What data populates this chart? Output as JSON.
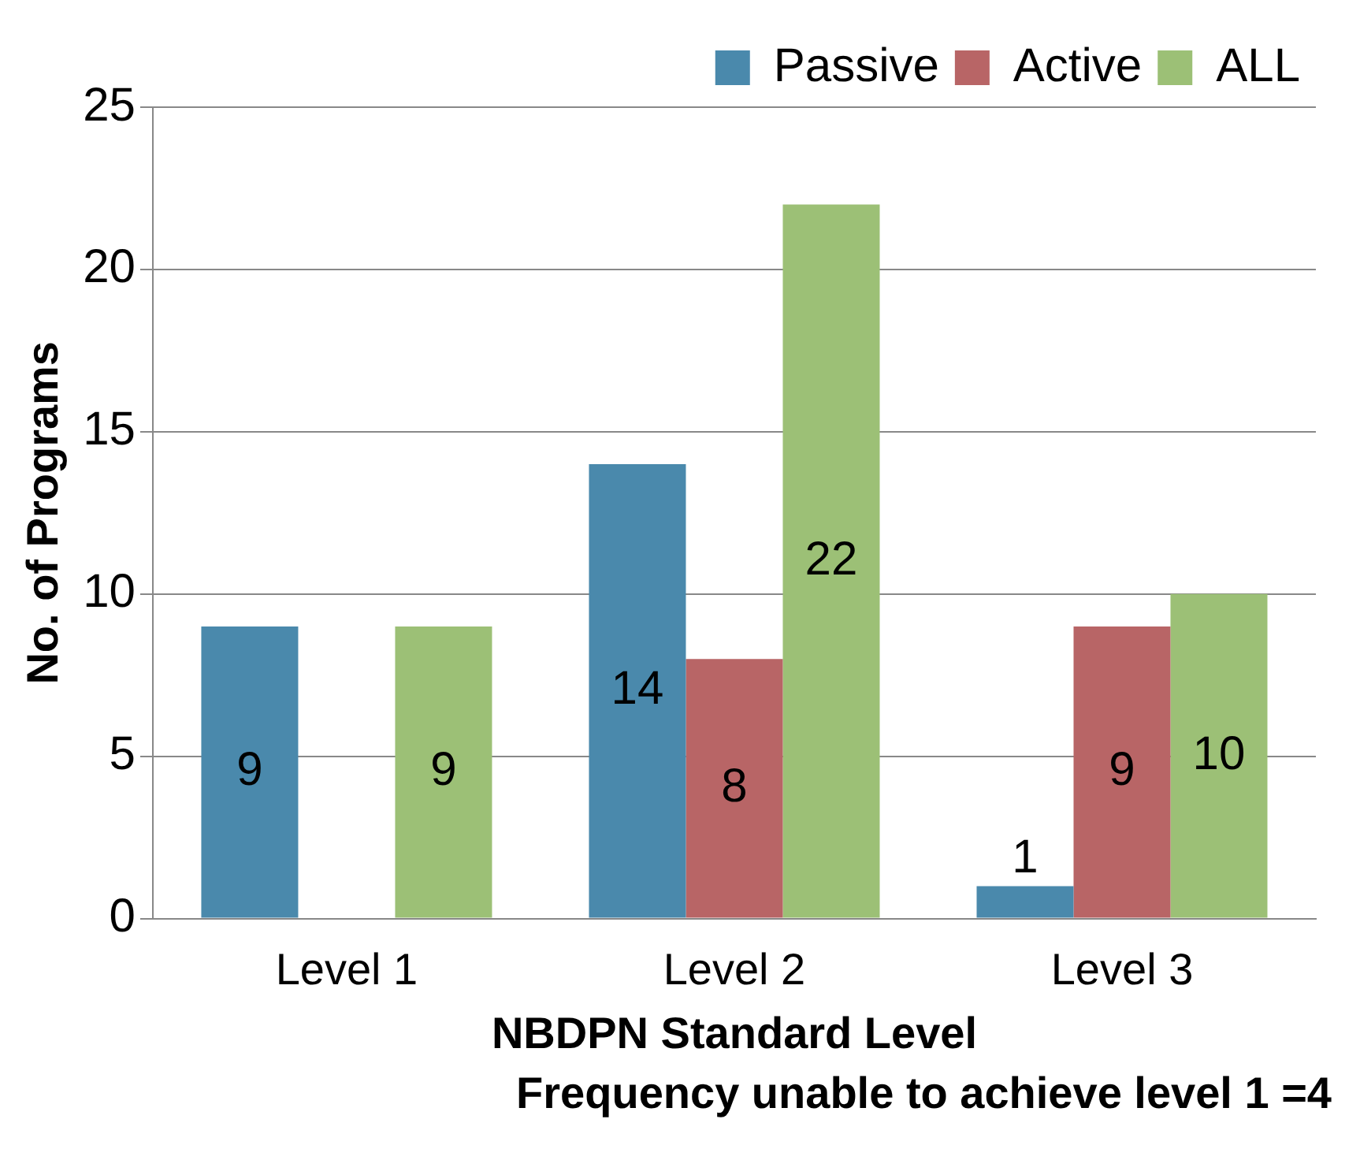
{
  "chart_data": {
    "type": "bar",
    "ylabel": "No. of Programs",
    "xlabel": "NBDPN Standard Level",
    "annotations": [
      "Frequency unable to achieve level 1 =4"
    ],
    "categories": [
      "Level 1",
      "Level 2",
      "Level 3"
    ],
    "series": [
      {
        "name": "Passive",
        "color": "#4a89ac",
        "values": [
          9,
          14,
          1
        ]
      },
      {
        "name": "Active",
        "color": "#b86566",
        "values": [
          null,
          8,
          9
        ]
      },
      {
        "name": "ALL",
        "color": "#9cc076",
        "values": [
          9,
          22,
          10
        ]
      }
    ],
    "ylim": [
      0,
      25
    ],
    "yticks": [
      0,
      5,
      10,
      15,
      20,
      25
    ],
    "grid": "y",
    "legend": "top right",
    "data_labels": true
  }
}
